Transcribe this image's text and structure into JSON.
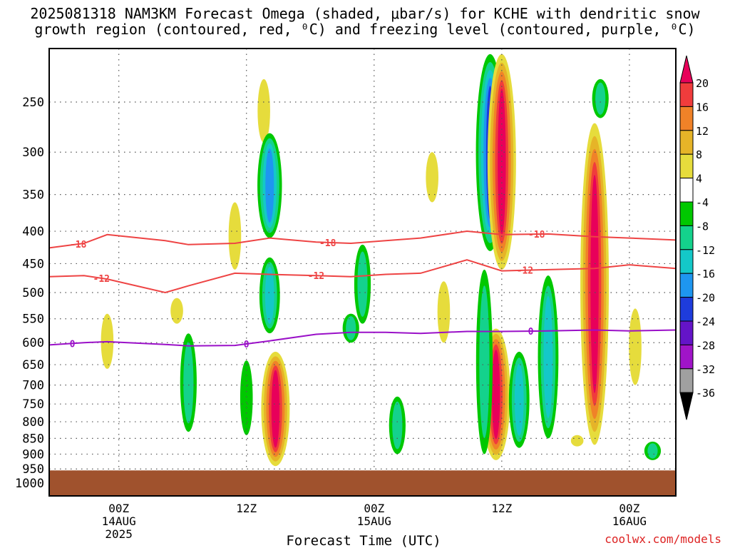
{
  "title_line1": "2025081318 NAM3KM Forecast Omega (shaded, μbar/s) for KCHE with dendritic snow",
  "title_line2": "growth region (contoured, red, ⁰C) and freezing level (contoured, purple, ⁰C)",
  "credit": "coolwx.com/models",
  "chart_data": {
    "type": "heatmap",
    "xlabel": "Forecast Time (UTC)",
    "ylabel": "",
    "x_start_date": "2025-08-13",
    "x_start_hour_utc": 18,
    "x_range_hours": [
      0,
      54
    ],
    "ylim": [
      1000,
      200
    ],
    "y_scale": "log",
    "y_ticks": [
      250,
      300,
      350,
      400,
      450,
      500,
      550,
      600,
      650,
      700,
      750,
      800,
      850,
      900,
      950,
      1000
    ],
    "x_ticks": [
      {
        "hour": 6,
        "label": "00Z",
        "sub1": "14AUG",
        "sub2": "2025"
      },
      {
        "hour": 17,
        "label": "12Z",
        "sub1": "",
        "sub2": ""
      },
      {
        "hour": 28,
        "label": "00Z",
        "sub1": "15AUG",
        "sub2": ""
      },
      {
        "hour": 39,
        "label": "12Z",
        "sub1": "",
        "sub2": ""
      },
      {
        "hour": 50,
        "label": "00Z",
        "sub1": "16AUG",
        "sub2": ""
      }
    ],
    "grid": true,
    "colorbar": {
      "units": "μbar/s",
      "labels": [
        "20",
        "16",
        "12",
        "8",
        "4",
        "-4",
        "-8",
        "-12",
        "-16",
        "-20",
        "-24",
        "-28",
        "-32",
        "-36"
      ],
      "colors": [
        "#e8005a",
        "#f03c3c",
        "#f08228",
        "#e6b428",
        "#e6dc3c",
        "#ffffff",
        "#00c800",
        "#14d28c",
        "#14c8c8",
        "#1e96f0",
        "#1e3cdc",
        "#6414c8",
        "#a014c8",
        "#a0a0a0",
        "#000000"
      ]
    },
    "contours": [
      {
        "name": "-18",
        "color": "#ee4444",
        "pressure": [
          425,
          418,
          405,
          414,
          420,
          418,
          410,
          416,
          418,
          414,
          410,
          400,
          405,
          404,
          408,
          410,
          413
        ],
        "labels_at_hours": [
          2.5,
          24,
          42
        ]
      },
      {
        "name": "-12",
        "color": "#ee4444",
        "pressure": [
          472,
          470,
          476,
          500,
          488,
          466,
          468,
          470,
          472,
          468,
          466,
          444,
          462,
          460,
          458,
          452,
          458
        ],
        "labels_at_hours": [
          4.5,
          23,
          41
        ]
      },
      {
        "name": "0",
        "color": "#9a10c8",
        "pressure": [
          605,
          600,
          598,
          604,
          607,
          606,
          596,
          582,
          578,
          578,
          580,
          576,
          576,
          575,
          573,
          575,
          573
        ],
        "labels_at_hours": [
          2,
          17,
          41.5
        ]
      }
    ],
    "contour_hours": [
      0,
      3,
      5,
      10,
      12,
      16,
      19,
      23,
      26,
      29,
      32,
      36,
      39,
      43,
      47,
      50,
      54
    ],
    "omega_features": [
      {
        "hour": 5,
        "p_top": 540,
        "p_bot": 660,
        "value": 4
      },
      {
        "hour": 11,
        "p_top": 510,
        "p_bot": 560,
        "value": 4
      },
      {
        "hour": 12,
        "p_top": 580,
        "p_bot": 830,
        "value": -8
      },
      {
        "hour": 16,
        "p_top": 360,
        "p_bot": 460,
        "value": 4
      },
      {
        "hour": 18.5,
        "p_top": 230,
        "p_bot": 290,
        "value": 4
      },
      {
        "hour": 19,
        "p_top": 280,
        "p_bot": 410,
        "value": -16
      },
      {
        "hour": 19,
        "p_top": 440,
        "p_bot": 580,
        "value": -12
      },
      {
        "hour": 19.5,
        "p_top": 620,
        "p_bot": 940,
        "value": 20
      },
      {
        "hour": 17,
        "p_top": 640,
        "p_bot": 840,
        "value": -4
      },
      {
        "hour": 26,
        "p_top": 540,
        "p_bot": 600,
        "value": -8
      },
      {
        "hour": 27,
        "p_top": 420,
        "p_bot": 560,
        "value": -8
      },
      {
        "hour": 30,
        "p_top": 730,
        "p_bot": 900,
        "value": -8
      },
      {
        "hour": 33,
        "p_top": 300,
        "p_bot": 360,
        "value": 4
      },
      {
        "hour": 34,
        "p_top": 480,
        "p_bot": 600,
        "value": 4
      },
      {
        "hour": 38,
        "p_top": 210,
        "p_bot": 430,
        "value": -20
      },
      {
        "hour": 39,
        "p_top": 210,
        "p_bot": 460,
        "value": 20
      },
      {
        "hour": 38.5,
        "p_top": 570,
        "p_bot": 920,
        "value": 20
      },
      {
        "hour": 37.5,
        "p_top": 460,
        "p_bot": 900,
        "value": -8
      },
      {
        "hour": 40.5,
        "p_top": 620,
        "p_bot": 880,
        "value": -12
      },
      {
        "hour": 43,
        "p_top": 470,
        "p_bot": 850,
        "value": -12
      },
      {
        "hour": 45.5,
        "p_top": 840,
        "p_bot": 875,
        "value": 4
      },
      {
        "hour": 47,
        "p_top": 270,
        "p_bot": 870,
        "value": 20
      },
      {
        "hour": 50.5,
        "p_top": 530,
        "p_bot": 700,
        "value": 4
      },
      {
        "hour": 52,
        "p_top": 860,
        "p_bot": 920,
        "value": -8
      },
      {
        "hour": 47.5,
        "p_top": 230,
        "p_bot": 265,
        "value": -8
      }
    ]
  }
}
